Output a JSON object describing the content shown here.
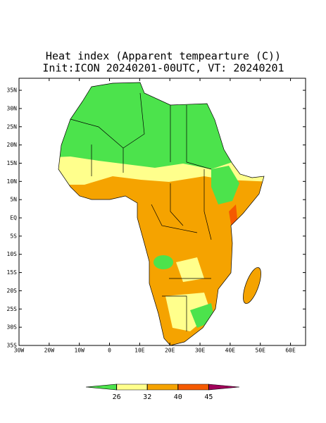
{
  "map": {
    "title": "Heat index (Apparent tempearture (C))",
    "subtitle": "Init:ICON 20240201-00UTC, VT: 20240201",
    "xlim": [
      -30,
      65
    ],
    "ylim": [
      -35,
      38.3
    ],
    "lat_ticks": [
      {
        "value": 35,
        "label": "35N"
      },
      {
        "value": 30,
        "label": "30N"
      },
      {
        "value": 25,
        "label": "25N"
      },
      {
        "value": 20,
        "label": "20N"
      },
      {
        "value": 15,
        "label": "15N"
      },
      {
        "value": 10,
        "label": "10N"
      },
      {
        "value": 5,
        "label": "5N"
      },
      {
        "value": 0,
        "label": "EQ"
      },
      {
        "value": -5,
        "label": "5S"
      },
      {
        "value": -10,
        "label": "10S"
      },
      {
        "value": -15,
        "label": "15S"
      },
      {
        "value": -20,
        "label": "20S"
      },
      {
        "value": -25,
        "label": "25S"
      },
      {
        "value": -30,
        "label": "30S"
      },
      {
        "value": -35,
        "label": "35S"
      }
    ],
    "lon_ticks": [
      {
        "value": -30,
        "label": "30W"
      },
      {
        "value": -20,
        "label": "20W"
      },
      {
        "value": -10,
        "label": "10W"
      },
      0,
      {
        "value": 10,
        "label": "10E"
      },
      {
        "value": 20,
        "label": "20E"
      },
      {
        "value": 30,
        "label": "30E"
      },
      {
        "value": 40,
        "label": "40E"
      },
      {
        "value": 50,
        "label": "50E"
      },
      {
        "value": 60,
        "label": "60E"
      }
    ],
    "colorbar": {
      "levels": [
        26,
        32,
        40,
        45
      ],
      "colors": [
        "#4ce34c",
        "#ffff8c",
        "#f5a300",
        "#f55a00",
        "#a0005a"
      ]
    }
  }
}
